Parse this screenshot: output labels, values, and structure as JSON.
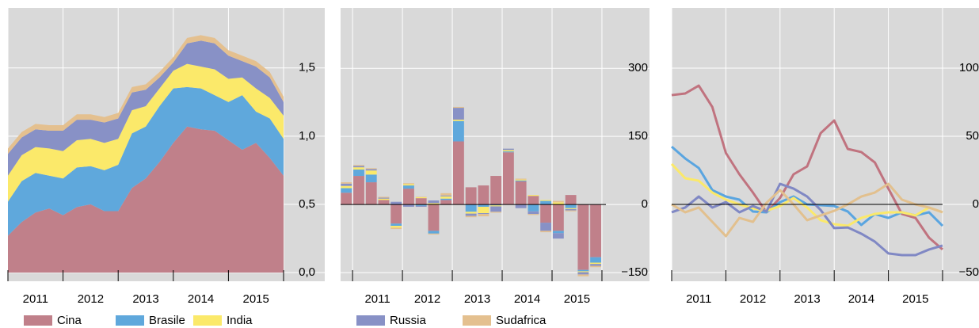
{
  "chart_data": [
    {
      "type": "area",
      "x": [
        2011,
        2011.25,
        2011.5,
        2011.75,
        2012,
        2012.25,
        2012.5,
        2012.75,
        2013,
        2013.25,
        2013.5,
        2013.75,
        2014,
        2014.25,
        2014.5,
        2014.75,
        2015,
        2015.25,
        2015.5,
        2015.75,
        2016
      ],
      "xlim": [
        2011,
        2016
      ],
      "xticks": [
        2011,
        2012,
        2013,
        2014,
        2015,
        2016
      ],
      "x_labels": [
        "2011",
        "2012",
        "2013",
        "2014",
        "2015"
      ],
      "ylim": [
        -0.064,
        1.94
      ],
      "yticks": [
        {
          "value": 0,
          "label": "0,0"
        },
        {
          "value": 0.5,
          "label": "0,5"
        },
        {
          "value": 1,
          "label": "1,0"
        },
        {
          "value": 1.5,
          "label": "1,5"
        }
      ],
      "grid": true,
      "series": [
        {
          "name": "Cina",
          "color": "#c0808a",
          "values": [
            0.27,
            0.37,
            0.44,
            0.47,
            0.42,
            0.48,
            0.5,
            0.45,
            0.45,
            0.62,
            0.69,
            0.81,
            0.95,
            1.07,
            1.05,
            1.04,
            0.97,
            0.9,
            0.95,
            0.84,
            0.71
          ]
        },
        {
          "name": "Brasile",
          "color": "#5fa8dc",
          "values": [
            0.25,
            0.3,
            0.29,
            0.24,
            0.27,
            0.29,
            0.28,
            0.3,
            0.34,
            0.4,
            0.38,
            0.41,
            0.4,
            0.29,
            0.3,
            0.26,
            0.28,
            0.4,
            0.23,
            0.29,
            0.27
          ]
        },
        {
          "name": "India",
          "color": "#fbe96a",
          "values": [
            0.19,
            0.19,
            0.19,
            0.2,
            0.2,
            0.2,
            0.2,
            0.2,
            0.19,
            0.17,
            0.15,
            0.13,
            0.13,
            0.17,
            0.16,
            0.19,
            0.17,
            0.13,
            0.17,
            0.15,
            0.17
          ]
        },
        {
          "name": "Russia",
          "color": "#8891c6",
          "values": [
            0.16,
            0.13,
            0.13,
            0.13,
            0.15,
            0.15,
            0.14,
            0.15,
            0.15,
            0.13,
            0.12,
            0.08,
            0.06,
            0.15,
            0.19,
            0.19,
            0.17,
            0.12,
            0.16,
            0.15,
            0.1
          ]
        },
        {
          "name": "Sudafrica",
          "color": "#e4c08f",
          "values": [
            0.04,
            0.04,
            0.04,
            0.04,
            0.04,
            0.04,
            0.04,
            0.04,
            0.04,
            0.04,
            0.04,
            0.04,
            0.04,
            0.04,
            0.04,
            0.04,
            0.04,
            0.04,
            0.04,
            0.04,
            0.04
          ]
        }
      ]
    },
    {
      "type": "bar",
      "x": [
        2010.875,
        2011.125,
        2011.375,
        2011.625,
        2011.875,
        2012.125,
        2012.375,
        2012.625,
        2012.875,
        2013.125,
        2013.375,
        2013.625,
        2013.875,
        2014.125,
        2014.375,
        2014.625,
        2014.875,
        2015.125,
        2015.375,
        2015.625,
        2015.875
      ],
      "xlim": [
        2010.76,
        2016.08
      ],
      "xticks": [
        2011,
        2012,
        2013,
        2014,
        2015,
        2016
      ],
      "x_labels": [
        "2011",
        "2012",
        "2013",
        "2014",
        "2015"
      ],
      "ylim": [
        -169,
        433
      ],
      "yticks": [
        {
          "value": -150,
          "label": "−150"
        },
        0,
        150,
        300
      ],
      "grid": true,
      "zero_line": true,
      "series": [
        {
          "color": "#c0808a",
          "values": [
            26,
            63,
            49,
            10,
            -42,
            35,
            14,
            -58,
            10,
            139,
            38,
            42,
            63,
            115,
            51,
            19,
            -40,
            -58,
            21,
            -144,
            -116
          ]
        },
        {
          "color": "#5fa8dc",
          "values": [
            10,
            14,
            17,
            0,
            -5,
            7,
            -3,
            -6,
            3,
            45,
            -16,
            -5,
            -2,
            2,
            2,
            -15,
            8,
            -5,
            -8,
            -3,
            -12
          ]
        },
        {
          "color": "#fbe96a",
          "values": [
            5,
            5,
            9,
            3,
            -4,
            3,
            2,
            3,
            5,
            3,
            -4,
            -14,
            -2,
            3,
            2,
            2,
            2,
            5,
            -2,
            -2,
            -3
          ]
        },
        {
          "color": "#8891c6",
          "values": [
            5,
            3,
            3,
            2,
            6,
            -5,
            -2,
            6,
            2,
            26,
            -5,
            -2,
            -12,
            3,
            -8,
            -6,
            -18,
            -12,
            -3,
            -5,
            -4
          ]
        },
        {
          "color": "#e4c08f",
          "values": [
            3,
            2,
            2,
            2,
            -3,
            2,
            1,
            -2,
            5,
            2,
            -3,
            -5,
            -2,
            0,
            2,
            -2,
            -3,
            3,
            -2,
            -4,
            -3
          ]
        }
      ]
    },
    {
      "type": "line",
      "x": [
        2011,
        2011.25,
        2011.5,
        2011.75,
        2012,
        2012.25,
        2012.5,
        2012.75,
        2013,
        2013.25,
        2013.5,
        2013.75,
        2014,
        2014.25,
        2014.5,
        2014.75,
        2015,
        2015.25,
        2015.5,
        2015.75,
        2016
      ],
      "xlim": [
        2011,
        2016
      ],
      "xticks": [
        2011,
        2012,
        2013,
        2014,
        2015,
        2016
      ],
      "x_labels": [
        "2011",
        "2012",
        "2013",
        "2014",
        "2015"
      ],
      "ylim": [
        -56.4,
        144.2
      ],
      "yticks": [
        {
          "value": -50,
          "label": "−50"
        },
        0,
        50,
        100
      ],
      "grid": true,
      "zero_line": true,
      "series": [
        {
          "color": "#c0737f",
          "values": [
            80.2,
            81.4,
            87.2,
            71.5,
            37.8,
            22.1,
            8.7,
            -5.8,
            4.7,
            22.1,
            27.9,
            52.3,
            61.6,
            40.7,
            38.4,
            30.8,
            11.6,
            -7,
            -9.9,
            -24.4,
            -33.1
          ]
        },
        {
          "color": "#5aa5e0",
          "values": [
            42.4,
            33.7,
            26.7,
            10.5,
            5.8,
            3.5,
            -5.2,
            -5.8,
            1.7,
            5.8,
            0,
            -0.6,
            -1.2,
            -5.2,
            -15.1,
            -7,
            -9.9,
            -5.8,
            -8.1,
            -5.8,
            -15.7
          ]
        },
        {
          "color": "#fbe96a",
          "values": [
            29.7,
            19.2,
            17.4,
            8.7,
            3.5,
            0,
            -2.9,
            -4.7,
            -1.2,
            4.7,
            -2.3,
            -11.6,
            -14.5,
            -15.7,
            -9.9,
            -7,
            -5.8,
            -5.8,
            -8.1,
            -2.3,
            -5.8
          ]
        },
        {
          "color": "#8088c4",
          "values": [
            -5.8,
            -2.3,
            5.8,
            -2.3,
            1.7,
            -5.8,
            -1.2,
            -5.2,
            15.1,
            11.6,
            5.8,
            -4.1,
            -17.4,
            -16.9,
            -21.5,
            -27.3,
            -36,
            -37.2,
            -37.2,
            -33.1,
            -30.2
          ]
        },
        {
          "color": "#e2c08e",
          "values": [
            0,
            -5.8,
            -2.3,
            -12.8,
            -23.3,
            -9.9,
            -12.8,
            1.2,
            10.5,
            0,
            -11.6,
            -8.1,
            -4.7,
            0,
            5.8,
            8.7,
            15.1,
            3.5,
            0,
            -2.3,
            -5.8
          ]
        }
      ]
    }
  ]
}
